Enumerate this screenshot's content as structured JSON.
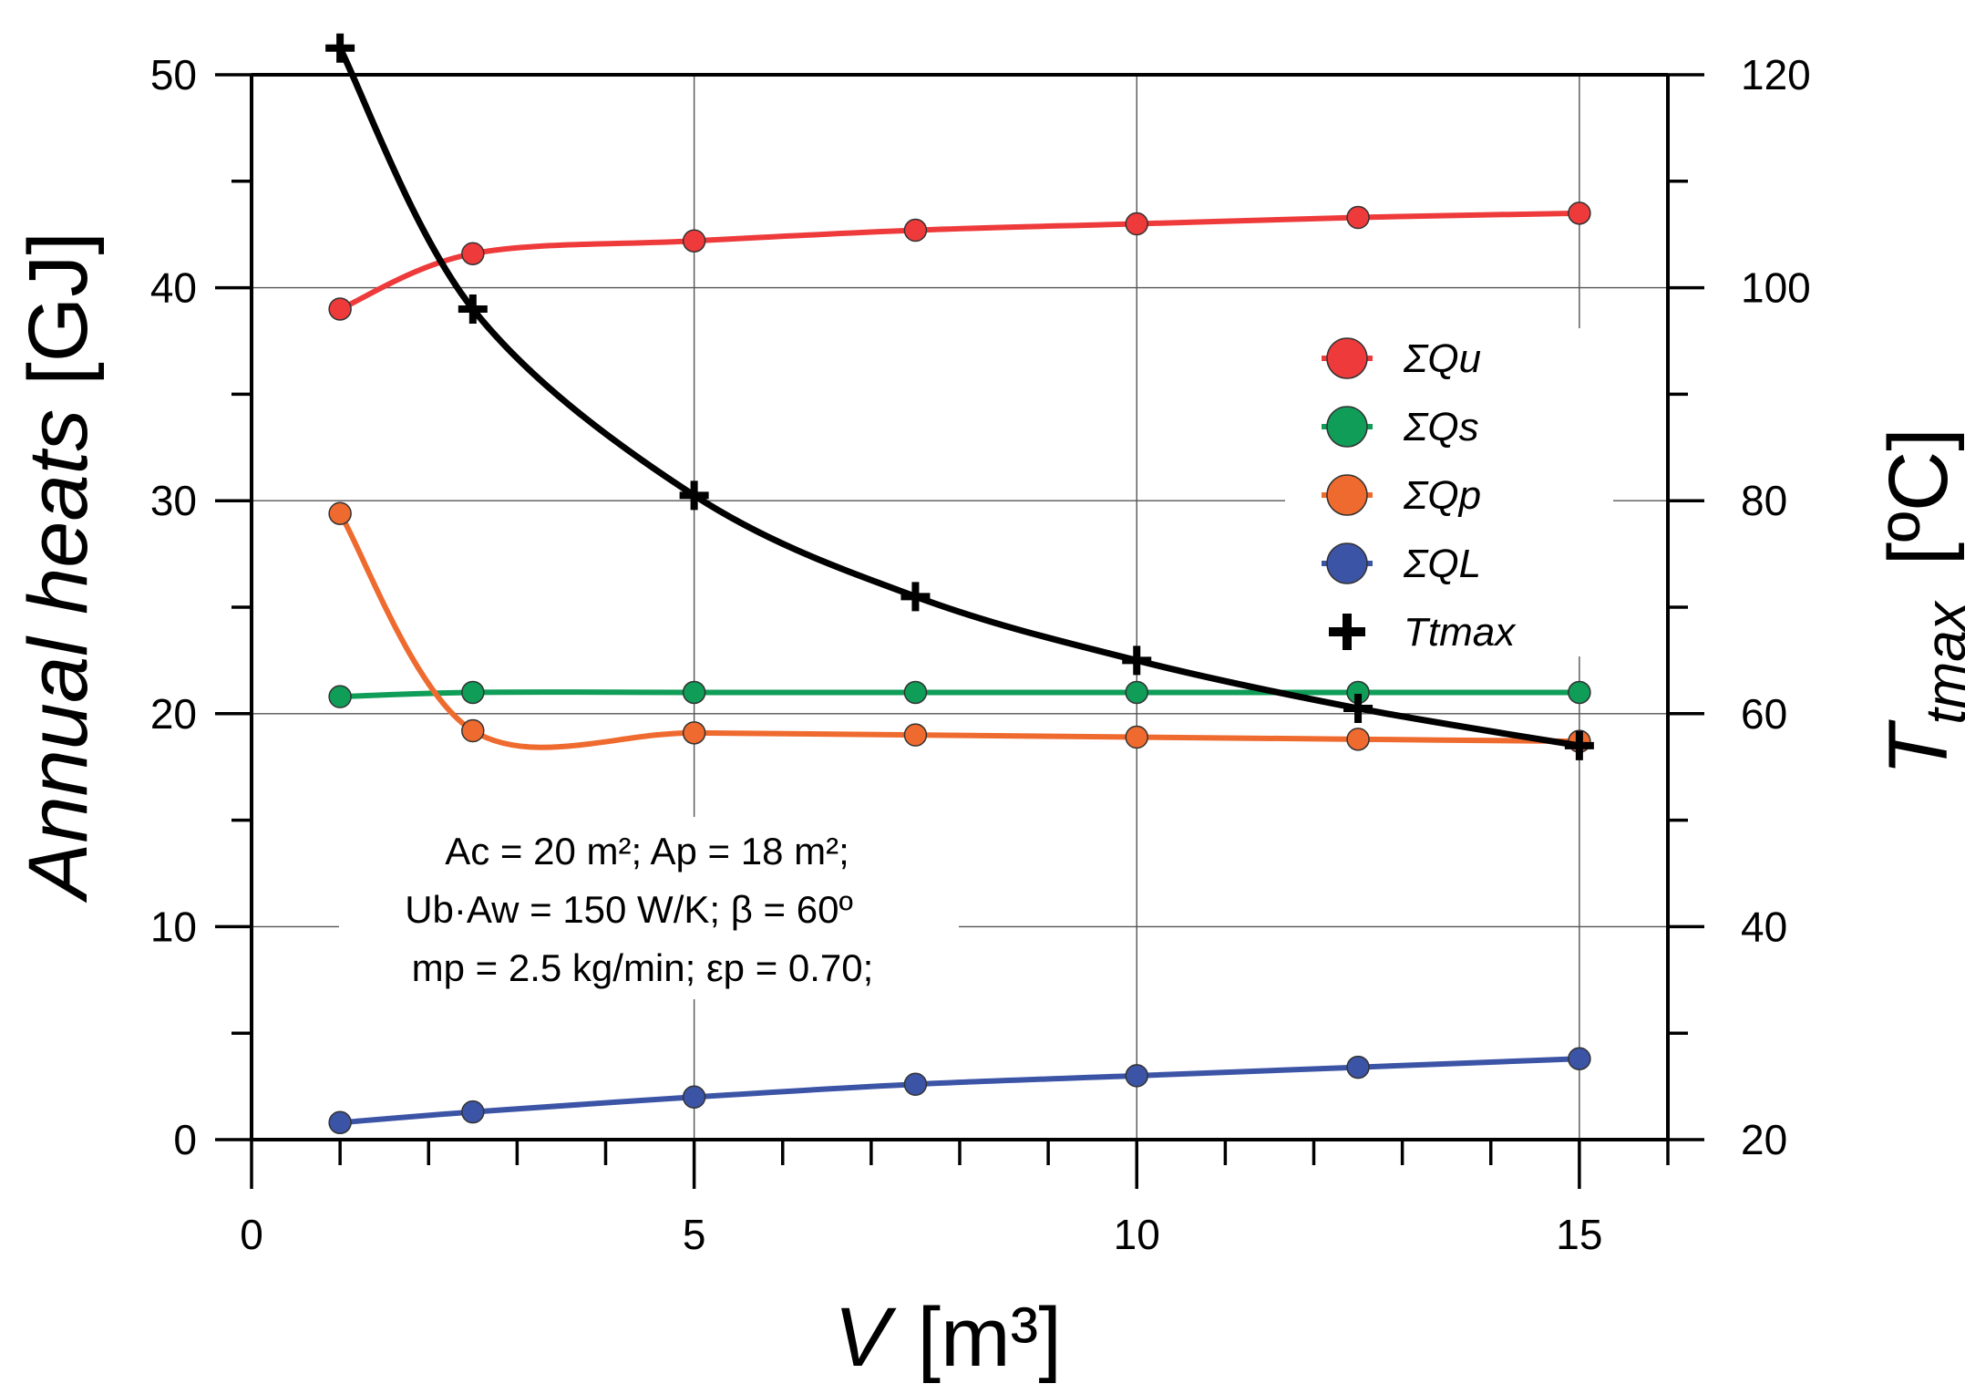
{
  "chart_data": {
    "type": "line",
    "x_label_var": "V",
    "x_label_unit": "[m³]",
    "y_left_label": "Annual heats",
    "y_left_unit": "[GJ]",
    "y_right_label_var": "T",
    "y_right_label_sub": "tmax",
    "y_right_unit": "[ºC]",
    "xlim": [
      0,
      16
    ],
    "ylim_left": [
      0,
      50
    ],
    "ylim_right": [
      20,
      120
    ],
    "x_ticks": [
      "0",
      "5",
      "10",
      "15"
    ],
    "y_left_ticks": [
      "0",
      "10",
      "20",
      "30",
      "40",
      "50"
    ],
    "y_right_ticks": [
      "20",
      "40",
      "60",
      "80",
      "100",
      "120"
    ],
    "series": [
      {
        "name": "ΣQu",
        "axis": "left",
        "color": "#ee3a3a",
        "marker": "circle",
        "x": [
          1,
          2.5,
          5,
          7.5,
          10,
          12.5,
          15
        ],
        "values": [
          39.0,
          41.6,
          42.2,
          42.7,
          43.0,
          43.3,
          43.5
        ]
      },
      {
        "name": "ΣQs",
        "axis": "left",
        "color": "#109d58",
        "marker": "circle",
        "x": [
          1,
          2.5,
          5,
          7.5,
          10,
          12.5,
          15
        ],
        "values": [
          20.8,
          21.0,
          21.0,
          21.0,
          21.0,
          21.0,
          21.0
        ]
      },
      {
        "name": "ΣQp",
        "axis": "left",
        "color": "#ef6a2e",
        "marker": "circle",
        "x": [
          1,
          2.5,
          5,
          7.5,
          10,
          12.5,
          15
        ],
        "values": [
          29.4,
          19.2,
          19.1,
          19.0,
          18.9,
          18.8,
          18.7
        ]
      },
      {
        "name": "ΣQL",
        "axis": "left",
        "color": "#3c54a6",
        "marker": "circle",
        "x": [
          1,
          2.5,
          5,
          7.5,
          10,
          12.5,
          15
        ],
        "values": [
          0.8,
          1.3,
          2.0,
          2.6,
          3.0,
          3.4,
          3.8
        ]
      },
      {
        "name": "Ttmax",
        "axis": "right",
        "color": "#000000",
        "marker": "cross",
        "x": [
          1,
          2.5,
          5,
          7.5,
          10,
          12.5,
          15
        ],
        "values": [
          122.5,
          98,
          80.5,
          71,
          65,
          60.5,
          57
        ]
      }
    ],
    "annotation_lines": [
      "Ac = 20 m²;  Ap = 18 m²;",
      "Ub·Aw = 150 W/K;  β = 60º",
      "mp = 2.5 kg/min;  εp = 0.70;"
    ],
    "legend_position": "right-middle",
    "grid": true
  }
}
